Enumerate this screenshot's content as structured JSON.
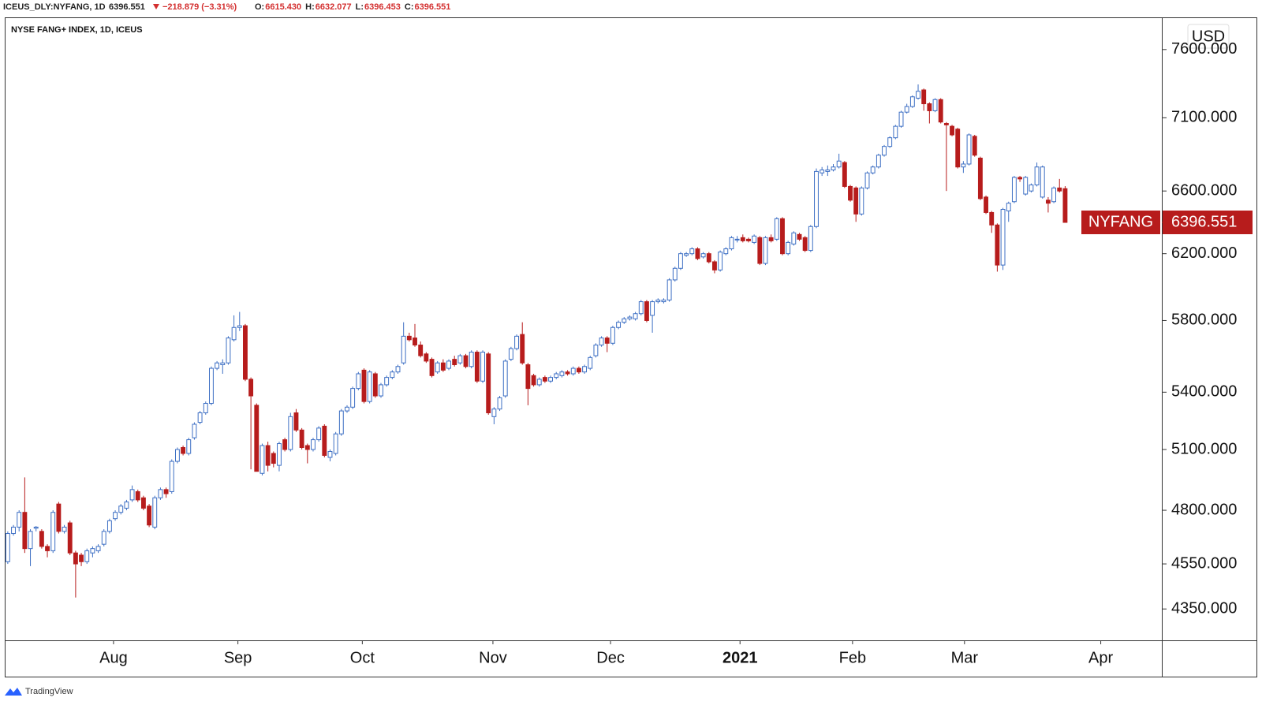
{
  "header": {
    "symbol": "ICEUS_DLY:NYFANG, 1D",
    "last": "6396.551",
    "change": "−218.879 (−3.31%)",
    "ohlc": [
      {
        "label": "O:",
        "value": "6615.430"
      },
      {
        "label": "H:",
        "value": "6632.077"
      },
      {
        "label": "L:",
        "value": "6396.453"
      },
      {
        "label": "C:",
        "value": "6396.551"
      }
    ]
  },
  "footer": {
    "brand": "TradingView"
  },
  "chart_data": {
    "type": "candlestick",
    "title": "NYSE FANG+ INDEX, 1D, ICEUS",
    "currency": "USD",
    "up_color": "#3d6fc4",
    "down_color": "#b71c1c",
    "log_scale": true,
    "ylim": [
      4216,
      7848
    ],
    "yticks": [
      {
        "value": 4350,
        "label": "4350.000"
      },
      {
        "value": 4550,
        "label": "4550.000"
      },
      {
        "value": 4800,
        "label": "4800.000"
      },
      {
        "value": 5100,
        "label": "5100.000"
      },
      {
        "value": 5400,
        "label": "5400.000"
      },
      {
        "value": 5800,
        "label": "5800.000"
      },
      {
        "value": 6200,
        "label": "6200.000"
      },
      {
        "value": 6600,
        "label": "6600.000"
      },
      {
        "value": 7100,
        "label": "7100.000"
      },
      {
        "value": 7600,
        "label": "7600.000"
      }
    ],
    "xlim": [
      -0.4,
      204.1
    ],
    "xticks": [
      {
        "value": 18.7,
        "label": "Aug"
      },
      {
        "value": 40.7,
        "label": "Sep"
      },
      {
        "value": 62.7,
        "label": "Oct"
      },
      {
        "value": 85.8,
        "label": "Nov"
      },
      {
        "value": 106.6,
        "label": "Dec"
      },
      {
        "value": 129.5,
        "label": "2021"
      },
      {
        "value": 149.4,
        "label": "Feb"
      },
      {
        "value": 169.2,
        "label": "Mar"
      },
      {
        "value": 193.3,
        "label": "Apr"
      }
    ],
    "last_price": {
      "name": "NYFANG",
      "value": 6396.551
    },
    "candles": [
      [
        4560,
        4700,
        4550,
        4690
      ],
      [
        4690,
        4730,
        4680,
        4720
      ],
      [
        4720,
        4800,
        4700,
        4790
      ],
      [
        4790,
        4960,
        4600,
        4620
      ],
      [
        4620,
        4710,
        4540,
        4700
      ],
      [
        4715,
        4725,
        4700,
        4720
      ],
      [
        4700,
        4710,
        4620,
        4630
      ],
      [
        4630,
        4640,
        4580,
        4610
      ],
      [
        4610,
        4800,
        4600,
        4790
      ],
      [
        4830,
        4840,
        4690,
        4700
      ],
      [
        4700,
        4730,
        4690,
        4720
      ],
      [
        4740,
        4750,
        4590,
        4600
      ],
      [
        4600,
        4610,
        4400,
        4550
      ],
      [
        4590,
        4600,
        4540,
        4560
      ],
      [
        4560,
        4620,
        4550,
        4610
      ],
      [
        4600,
        4630,
        4580,
        4620
      ],
      [
        4610,
        4640,
        4600,
        4630
      ],
      [
        4640,
        4710,
        4630,
        4700
      ],
      [
        4700,
        4760,
        4690,
        4750
      ],
      [
        4760,
        4800,
        4750,
        4790
      ],
      [
        4790,
        4830,
        4780,
        4820
      ],
      [
        4810,
        4850,
        4800,
        4840
      ],
      [
        4850,
        4920,
        4840,
        4900
      ],
      [
        4890,
        4900,
        4840,
        4850
      ],
      [
        4860,
        4870,
        4800,
        4810
      ],
      [
        4820,
        4830,
        4720,
        4730
      ],
      [
        4720,
        4870,
        4710,
        4860
      ],
      [
        4860,
        4910,
        4850,
        4900
      ],
      [
        4900,
        4910,
        4860,
        4880
      ],
      [
        4890,
        5050,
        4880,
        5040
      ],
      [
        5040,
        5110,
        5030,
        5100
      ],
      [
        5110,
        5120,
        5070,
        5080
      ],
      [
        5080,
        5160,
        5070,
        5150
      ],
      [
        5160,
        5240,
        5150,
        5230
      ],
      [
        5240,
        5300,
        5230,
        5290
      ],
      [
        5290,
        5350,
        5280,
        5340
      ],
      [
        5340,
        5540,
        5330,
        5530
      ],
      [
        5530,
        5570,
        5520,
        5560
      ],
      [
        5550,
        5580,
        5500,
        5560
      ],
      [
        5560,
        5710,
        5550,
        5700
      ],
      [
        5690,
        5830,
        5680,
        5760
      ],
      [
        5760,
        5850,
        5740,
        5770
      ],
      [
        5770,
        5780,
        5460,
        5470
      ],
      [
        5470,
        5480,
        5000,
        5380
      ],
      [
        5330,
        5340,
        4990,
        4990
      ],
      [
        4980,
        5130,
        4970,
        5120
      ],
      [
        5120,
        5140,
        4990,
        5020
      ],
      [
        5080,
        5090,
        5010,
        5030
      ],
      [
        5020,
        5140,
        4990,
        5130
      ],
      [
        5150,
        5160,
        5090,
        5100
      ],
      [
        5100,
        5290,
        5090,
        5270
      ],
      [
        5290,
        5310,
        5190,
        5200
      ],
      [
        5200,
        5210,
        5100,
        5110
      ],
      [
        5120,
        5130,
        5030,
        5100
      ],
      [
        5100,
        5160,
        5090,
        5150
      ],
      [
        5150,
        5220,
        5140,
        5210
      ],
      [
        5220,
        5230,
        5060,
        5070
      ],
      [
        5060,
        5100,
        5040,
        5090
      ],
      [
        5080,
        5190,
        5070,
        5180
      ],
      [
        5180,
        5310,
        5170,
        5300
      ],
      [
        5300,
        5330,
        5290,
        5320
      ],
      [
        5320,
        5430,
        5310,
        5420
      ],
      [
        5420,
        5510,
        5410,
        5500
      ],
      [
        5520,
        5530,
        5340,
        5350
      ],
      [
        5350,
        5520,
        5340,
        5510
      ],
      [
        5500,
        5510,
        5370,
        5380
      ],
      [
        5380,
        5450,
        5370,
        5440
      ],
      [
        5440,
        5490,
        5430,
        5480
      ],
      [
        5480,
        5520,
        5470,
        5510
      ],
      [
        5510,
        5550,
        5500,
        5540
      ],
      [
        5560,
        5790,
        5550,
        5710
      ],
      [
        5710,
        5730,
        5680,
        5690
      ],
      [
        5700,
        5780,
        5650,
        5660
      ],
      [
        5660,
        5680,
        5590,
        5600
      ],
      [
        5610,
        5620,
        5560,
        5570
      ],
      [
        5580,
        5590,
        5480,
        5490
      ],
      [
        5510,
        5570,
        5500,
        5560
      ],
      [
        5560,
        5580,
        5510,
        5520
      ],
      [
        5530,
        5580,
        5520,
        5570
      ],
      [
        5580,
        5600,
        5540,
        5550
      ],
      [
        5560,
        5610,
        5550,
        5600
      ],
      [
        5600,
        5610,
        5530,
        5540
      ],
      [
        5540,
        5630,
        5530,
        5620
      ],
      [
        5620,
        5630,
        5450,
        5460
      ],
      [
        5460,
        5630,
        5450,
        5620
      ],
      [
        5610,
        5620,
        5280,
        5290
      ],
      [
        5270,
        5320,
        5230,
        5310
      ],
      [
        5310,
        5380,
        5300,
        5370
      ],
      [
        5380,
        5580,
        5370,
        5570
      ],
      [
        5580,
        5650,
        5570,
        5640
      ],
      [
        5640,
        5720,
        5630,
        5710
      ],
      [
        5720,
        5790,
        5550,
        5560
      ],
      [
        5550,
        5560,
        5330,
        5420
      ],
      [
        5490,
        5500,
        5430,
        5440
      ],
      [
        5440,
        5480,
        5430,
        5470
      ],
      [
        5480,
        5490,
        5450,
        5460
      ],
      [
        5460,
        5490,
        5450,
        5480
      ],
      [
        5480,
        5510,
        5470,
        5500
      ],
      [
        5490,
        5520,
        5480,
        5510
      ],
      [
        5510,
        5520,
        5490,
        5500
      ],
      [
        5500,
        5540,
        5490,
        5530
      ],
      [
        5530,
        5540,
        5500,
        5510
      ],
      [
        5510,
        5550,
        5500,
        5540
      ],
      [
        5530,
        5600,
        5520,
        5590
      ],
      [
        5600,
        5670,
        5590,
        5660
      ],
      [
        5660,
        5710,
        5650,
        5700
      ],
      [
        5700,
        5710,
        5620,
        5670
      ],
      [
        5670,
        5770,
        5660,
        5760
      ],
      [
        5760,
        5800,
        5750,
        5790
      ],
      [
        5790,
        5820,
        5780,
        5810
      ],
      [
        5810,
        5830,
        5800,
        5820
      ],
      [
        5810,
        5850,
        5800,
        5840
      ],
      [
        5840,
        5920,
        5830,
        5910
      ],
      [
        5910,
        5920,
        5790,
        5800
      ],
      [
        5830,
        5920,
        5730,
        5910
      ],
      [
        5910,
        5930,
        5900,
        5920
      ],
      [
        5910,
        5930,
        5900,
        5920
      ],
      [
        5920,
        6050,
        5910,
        6040
      ],
      [
        6040,
        6120,
        6030,
        6110
      ],
      [
        6110,
        6210,
        6100,
        6200
      ],
      [
        6190,
        6210,
        6180,
        6200
      ],
      [
        6200,
        6240,
        6190,
        6230
      ],
      [
        6230,
        6240,
        6160,
        6170
      ],
      [
        6180,
        6210,
        6170,
        6200
      ],
      [
        6200,
        6210,
        6140,
        6150
      ],
      [
        6150,
        6160,
        6080,
        6100
      ],
      [
        6100,
        6220,
        6090,
        6210
      ],
      [
        6200,
        6240,
        6190,
        6230
      ],
      [
        6230,
        6310,
        6220,
        6300
      ],
      [
        6290,
        6310,
        6270,
        6290
      ],
      [
        6300,
        6320,
        6270,
        6280
      ],
      [
        6290,
        6300,
        6270,
        6280
      ],
      [
        6270,
        6320,
        6260,
        6310
      ],
      [
        6300,
        6310,
        6130,
        6140
      ],
      [
        6140,
        6310,
        6130,
        6300
      ],
      [
        6300,
        6320,
        6270,
        6280
      ],
      [
        6290,
        6430,
        6280,
        6420
      ],
      [
        6420,
        6430,
        6190,
        6200
      ],
      [
        6200,
        6280,
        6190,
        6270
      ],
      [
        6260,
        6340,
        6250,
        6330
      ],
      [
        6320,
        6330,
        6280,
        6290
      ],
      [
        6300,
        6310,
        6210,
        6220
      ],
      [
        6220,
        6380,
        6210,
        6370
      ],
      [
        6370,
        6750,
        6360,
        6730
      ],
      [
        6720,
        6760,
        6700,
        6740
      ],
      [
        6730,
        6770,
        6700,
        6740
      ],
      [
        6740,
        6780,
        6730,
        6760
      ],
      [
        6760,
        6850,
        6750,
        6800
      ],
      [
        6790,
        6800,
        6620,
        6630
      ],
      [
        6630,
        6640,
        6530,
        6540
      ],
      [
        6620,
        6630,
        6400,
        6450
      ],
      [
        6450,
        6630,
        6440,
        6620
      ],
      [
        6620,
        6730,
        6610,
        6720
      ],
      [
        6720,
        6770,
        6710,
        6760
      ],
      [
        6760,
        6850,
        6750,
        6840
      ],
      [
        6840,
        6910,
        6830,
        6900
      ],
      [
        6900,
        6970,
        6890,
        6960
      ],
      [
        6960,
        7050,
        6950,
        7040
      ],
      [
        7040,
        7150,
        7030,
        7140
      ],
      [
        7140,
        7200,
        7130,
        7180
      ],
      [
        7180,
        7260,
        7170,
        7250
      ],
      [
        7240,
        7340,
        7230,
        7290
      ],
      [
        7300,
        7310,
        7150,
        7200
      ],
      [
        7200,
        7210,
        7060,
        7150
      ],
      [
        7150,
        7240,
        7140,
        7230
      ],
      [
        7230,
        7240,
        7060,
        7070
      ],
      [
        7060,
        7070,
        6600,
        7050
      ],
      [
        7040,
        7050,
        6970,
        6980
      ],
      [
        7020,
        7030,
        6750,
        6760
      ],
      [
        6760,
        6800,
        6720,
        6780
      ],
      [
        6780,
        6990,
        6770,
        6980
      ],
      [
        6970,
        6980,
        6830,
        6840
      ],
      [
        6820,
        6830,
        6540,
        6550
      ],
      [
        6560,
        6570,
        6450,
        6460
      ],
      [
        6460,
        6470,
        6330,
        6380
      ],
      [
        6380,
        6390,
        6090,
        6130
      ],
      [
        6130,
        6490,
        6100,
        6480
      ],
      [
        6470,
        6530,
        6400,
        6520
      ],
      [
        6530,
        6700,
        6520,
        6690
      ],
      [
        6690,
        6700,
        6660,
        6680
      ],
      [
        6580,
        6700,
        6570,
        6690
      ],
      [
        6600,
        6650,
        6590,
        6640
      ],
      [
        6640,
        6790,
        6630,
        6760
      ],
      [
        6560,
        6770,
        6550,
        6760
      ],
      [
        6540,
        6560,
        6460,
        6520
      ],
      [
        6530,
        6630,
        6520,
        6620
      ],
      [
        6620,
        6680,
        6590,
        6600
      ],
      [
        6615.43,
        6632.077,
        6396.453,
        6396.551
      ]
    ]
  }
}
